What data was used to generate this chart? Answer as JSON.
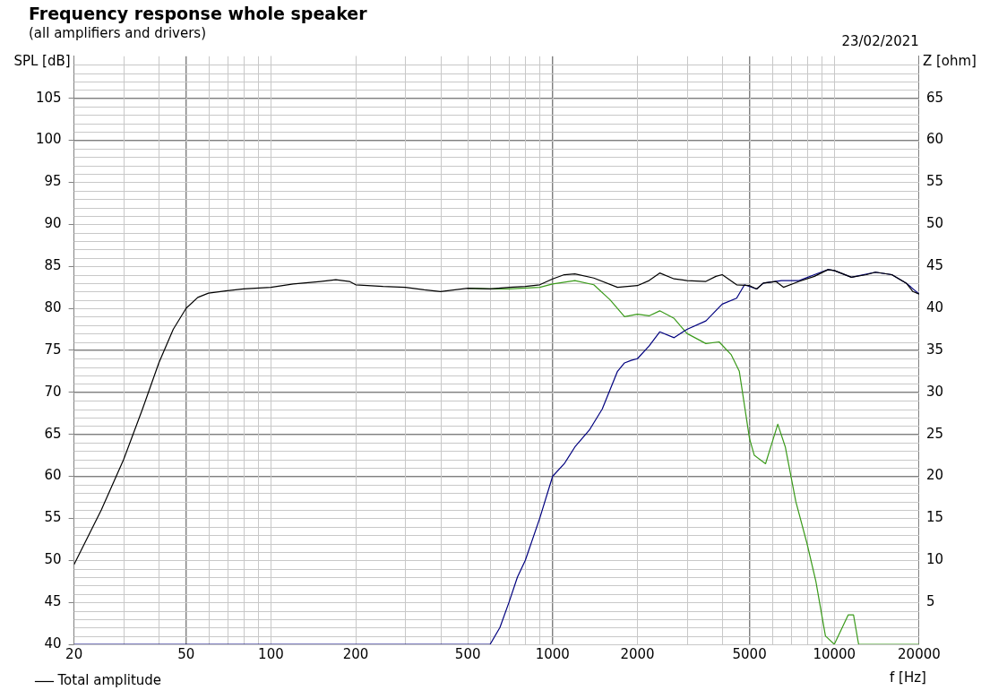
{
  "chart_data": {
    "type": "line",
    "title": "Frequency response whole speaker",
    "subtitle": "(all amplifiers and drivers)",
    "xlabel": "f [Hz]",
    "ylabel": "SPL [dB]",
    "y2label": "Z [ohm]",
    "annotations": [
      "23/02/2021"
    ],
    "log": "x",
    "grid": true,
    "legend": "bottom left",
    "marker": "none",
    "line_style": "solid",
    "xlim": [
      20,
      20000
    ],
    "xticks": [
      20,
      50,
      100,
      200,
      500,
      1000,
      2000,
      5000,
      10000,
      20000
    ],
    "ylim": [
      40,
      110
    ],
    "yticks": [
      40,
      45,
      50,
      55,
      60,
      65,
      70,
      75,
      80,
      85,
      90,
      95,
      100,
      105
    ],
    "y2lim": [
      0,
      70
    ],
    "y2ticks": [
      5,
      10,
      15,
      20,
      25,
      30,
      35,
      40,
      45,
      50,
      55,
      60,
      65
    ],
    "series": [
      {
        "name": "Total amplitude",
        "color": "#000000",
        "x": [
          20,
          25,
          30,
          35,
          40,
          45,
          50,
          55,
          60,
          70,
          80,
          100,
          120,
          150,
          170,
          190,
          200,
          250,
          300,
          350,
          400,
          500,
          600,
          700,
          800,
          900,
          1000,
          1100,
          1200,
          1400,
          1700,
          2000,
          2200,
          2400,
          2700,
          3000,
          3500,
          3800,
          4000,
          4500,
          5000,
          5300,
          5600,
          6200,
          6600,
          7500,
          8500,
          9500,
          10000,
          11500,
          13000,
          14000,
          16000,
          18000,
          19000,
          20000
        ],
        "values": [
          49.5,
          56,
          62,
          68,
          73.5,
          77.5,
          80,
          81.3,
          81.8,
          82.1,
          82.3,
          82.5,
          82.9,
          83.2,
          83.4,
          83.2,
          82.8,
          82.6,
          82.5,
          82.2,
          82,
          82.4,
          82.3,
          82.5,
          82.6,
          82.8,
          83.5,
          84,
          84.1,
          83.6,
          82.5,
          82.7,
          83.3,
          84.2,
          83.5,
          83.3,
          83.2,
          83.8,
          84,
          82.8,
          82.7,
          82.3,
          83,
          83.2,
          82.5,
          83.2,
          83.8,
          84.6,
          84.5,
          83.7,
          84,
          84.3,
          84,
          83,
          82,
          81.7
        ]
      },
      {
        "color": "#00007f",
        "x": [
          20,
          600,
          650,
          700,
          750,
          800,
          900,
          1000,
          1100,
          1200,
          1350,
          1500,
          1700,
          1800,
          1900,
          2000,
          2200,
          2400,
          2700,
          3000,
          3500,
          4000,
          4500,
          4800,
          5300,
          5600,
          6500,
          7500,
          8500,
          9500,
          10000,
          11500,
          14000,
          16000,
          18000,
          20000
        ],
        "values": [
          40,
          40,
          42,
          45,
          48,
          50,
          55,
          60,
          61.5,
          63.5,
          65.5,
          68,
          72.5,
          73.5,
          73.8,
          74,
          75.5,
          77.2,
          76.5,
          77.5,
          78.5,
          80.5,
          81.2,
          82.8,
          82.3,
          83,
          83.3,
          83.3,
          84,
          84.6,
          84.5,
          83.7,
          84.3,
          84,
          83,
          81.7
        ]
      },
      {
        "color": "#3a9a1a",
        "x": [
          500,
          600,
          700,
          900,
          1000,
          1200,
          1400,
          1600,
          1800,
          2000,
          2200,
          2400,
          2700,
          3000,
          3500,
          3900,
          4300,
          4600,
          5000,
          5200,
          5700,
          6300,
          6700,
          7300,
          8000,
          8600,
          9300,
          10000,
          11200,
          11700,
          12200,
          20000
        ],
        "values": [
          82.4,
          82.3,
          82.3,
          82.5,
          82.9,
          83.3,
          82.8,
          81,
          79,
          79.3,
          79.1,
          79.7,
          78.8,
          77,
          75.8,
          76,
          74.5,
          72.5,
          64.5,
          62.5,
          61.5,
          66.2,
          63.5,
          57,
          52,
          47.5,
          41,
          40,
          43.5,
          43.5,
          40,
          40
        ]
      }
    ]
  }
}
